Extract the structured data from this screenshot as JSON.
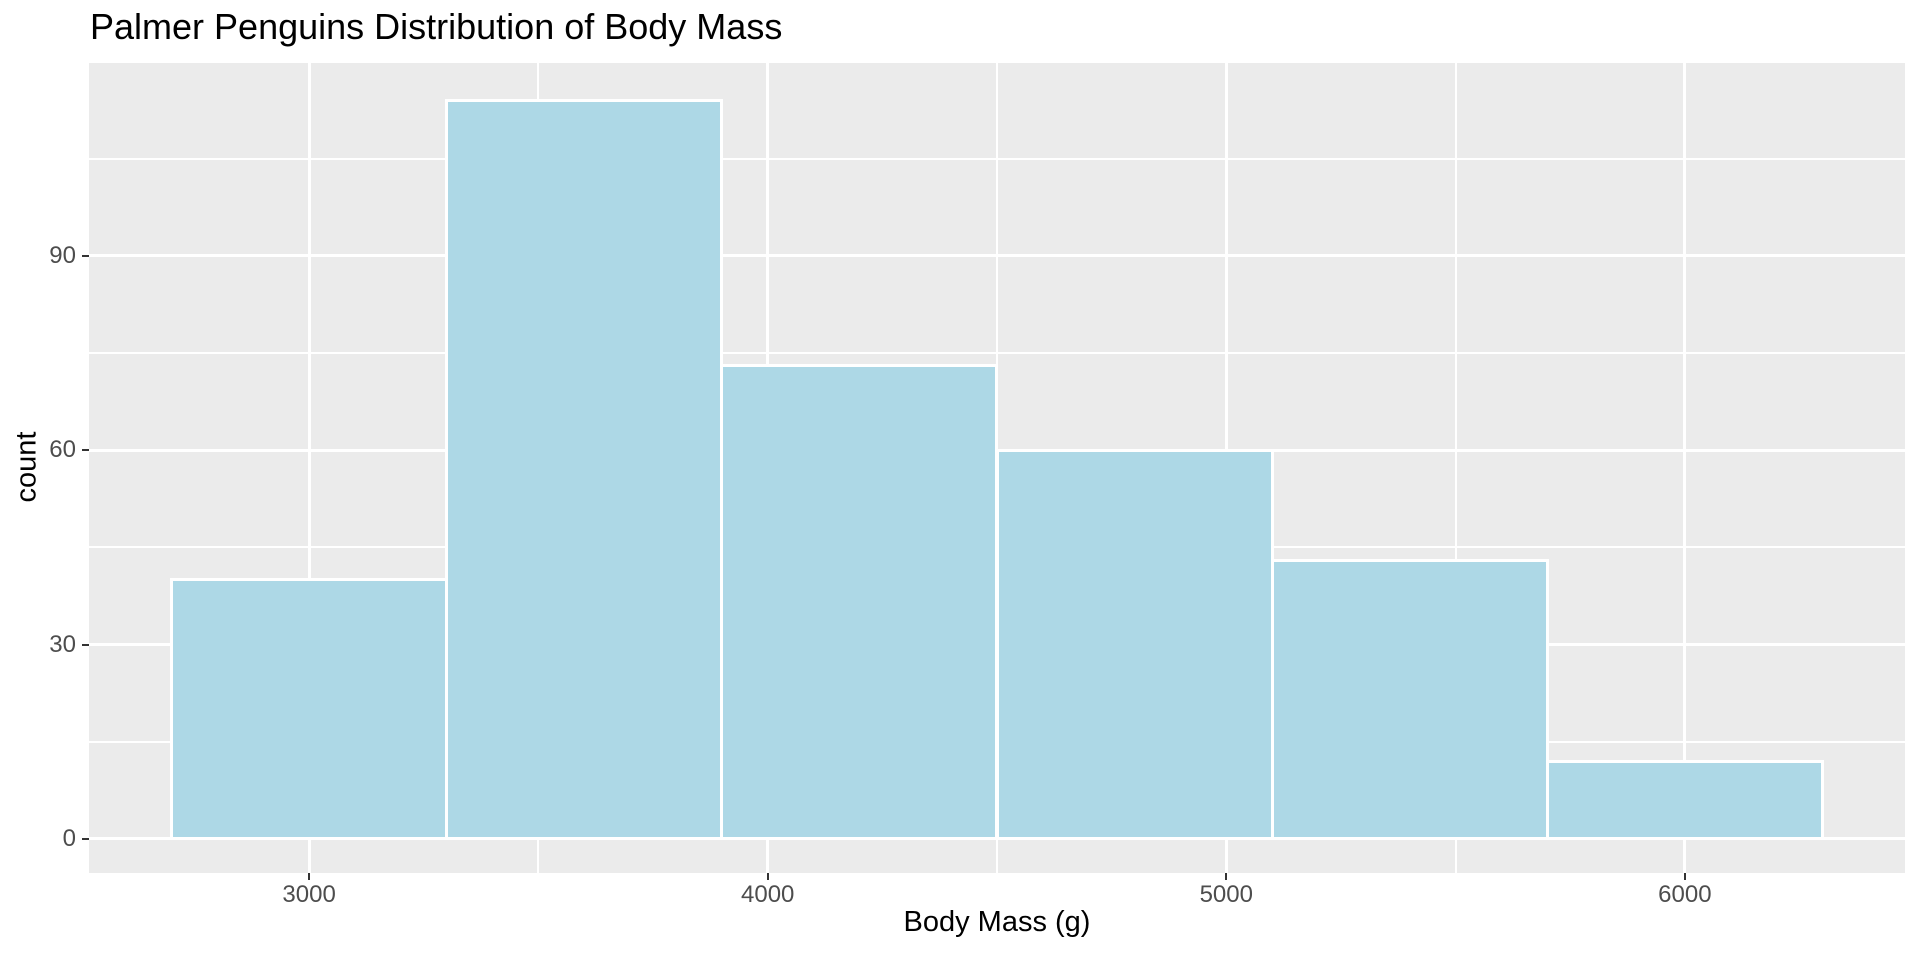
{
  "chart_data": {
    "type": "bar",
    "subtype": "histogram",
    "title": "Palmer Penguins Distribution of Body Mass",
    "xlabel": "Body Mass (g)",
    "ylabel": "count",
    "bin_start": 2700,
    "bin_width": 600,
    "bin_edges": [
      2700,
      3300,
      3900,
      4500,
      5100,
      5700,
      6300
    ],
    "counts": [
      40,
      114,
      73,
      60,
      43,
      12
    ],
    "x_ticks": [
      3000,
      4000,
      5000,
      6000
    ],
    "y_ticks": [
      0,
      30,
      60,
      90
    ],
    "x_minor_ticks": [
      3500,
      4500,
      5500
    ],
    "y_minor_ticks": [
      15,
      45,
      75,
      105
    ],
    "xlim": [
      2520,
      6480
    ],
    "ylim": [
      -5.25,
      119.75
    ],
    "grid": true,
    "legend_position": "none",
    "colors": {
      "bar_fill": "#ADD8E6",
      "bar_stroke": "#FFFFFF",
      "panel_background": "#EBEBEB",
      "gridline": "#FFFFFF",
      "tick_label": "#4D4D4D",
      "tick_mark": "#333333",
      "title_text": "#000000",
      "figure_background": "#FFFFFF"
    }
  }
}
